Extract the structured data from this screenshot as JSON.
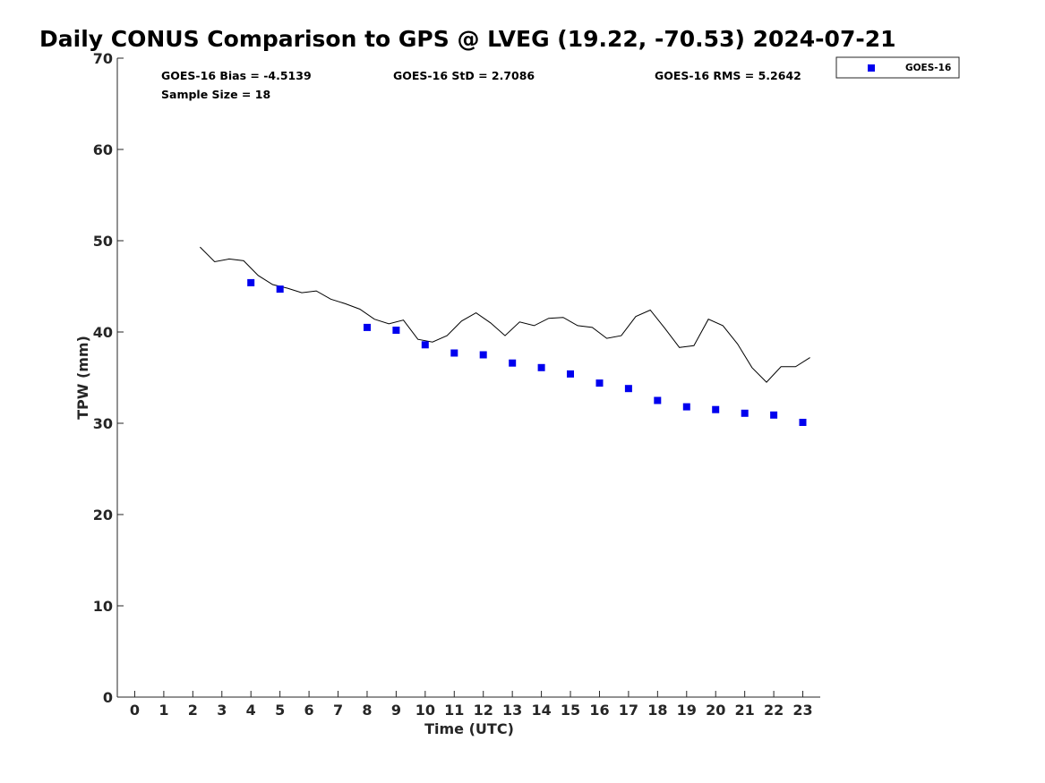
{
  "chart_data": {
    "type": "scatter",
    "title": "Daily CONUS Comparison to GPS @ LVEG (19.22, -70.53) 2024-07-21",
    "xlabel": "Time (UTC)",
    "ylabel": "TPW (mm)",
    "xlim": [
      -0.6,
      23.6
    ],
    "ylim": [
      0,
      70
    ],
    "x_ticks": [
      0,
      1,
      2,
      3,
      4,
      5,
      6,
      7,
      8,
      9,
      10,
      11,
      12,
      13,
      14,
      15,
      16,
      17,
      18,
      19,
      20,
      21,
      22,
      23
    ],
    "y_ticks": [
      0,
      10,
      20,
      30,
      40,
      50,
      60,
      70
    ],
    "grid": false,
    "legend_position": "top-right-outside",
    "stats": {
      "bias": "GOES-16 Bias = -4.5139",
      "std": "GOES-16 StD = 2.7086",
      "rms": "GOES-16 RMS = 5.2642",
      "sample": "Sample Size = 18"
    },
    "series": [
      {
        "kind": "line",
        "color": "#000000",
        "x": [
          2.25,
          2.75,
          3.25,
          3.75,
          4.25,
          4.75,
          5.25,
          5.75,
          6.25,
          6.75,
          7.25,
          7.75,
          8.25,
          8.75,
          9.25,
          9.75,
          10.25,
          10.75,
          11.25,
          11.75,
          12.25,
          12.75,
          13.25,
          13.75,
          14.25,
          14.75,
          15.25,
          15.75,
          16.25,
          16.75,
          17.25,
          17.75,
          18.25,
          18.75,
          19.25,
          19.75,
          20.25,
          20.75,
          21.25,
          21.75,
          22.25,
          22.75,
          23.25
        ],
        "y": [
          49.3,
          47.7,
          48.0,
          47.8,
          46.2,
          45.2,
          44.8,
          44.3,
          44.5,
          43.6,
          43.1,
          42.5,
          41.4,
          40.9,
          41.3,
          39.2,
          38.9,
          39.6,
          41.2,
          42.1,
          41.0,
          39.6,
          41.1,
          40.7,
          41.5,
          41.6,
          40.7,
          40.5,
          39.3,
          39.6,
          41.7,
          42.4,
          40.4,
          38.3,
          38.5,
          41.4,
          40.7,
          38.7,
          36.1,
          34.5,
          36.2,
          36.2,
          37.2
        ]
      },
      {
        "name": "GOES-16",
        "kind": "scatter",
        "color": "#0000ee",
        "x": [
          4,
          5,
          8,
          9,
          10,
          11,
          12,
          13,
          14,
          15,
          16,
          17,
          18,
          19,
          20,
          21,
          22,
          23
        ],
        "y": [
          45.4,
          44.7,
          40.5,
          40.2,
          38.6,
          37.7,
          37.5,
          36.6,
          36.1,
          35.4,
          34.4,
          33.8,
          32.5,
          31.8,
          31.5,
          31.1,
          30.9,
          30.1
        ]
      }
    ]
  }
}
